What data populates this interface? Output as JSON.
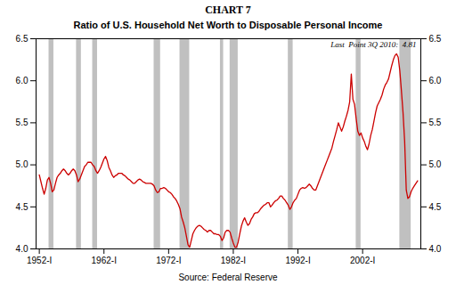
{
  "chart_data": {
    "type": "line",
    "title": "CHART 7",
    "subtitle": "Ratio of U.S. Household Net Worth to Disposable Personal Income",
    "annotation": "Last  Point 3Q 2010:  4.81",
    "source": "Source: Federal Reserve",
    "color": "#cc0000",
    "grid": false,
    "xlim": [
      1951.5,
      2011.0
    ],
    "xticks": [
      {
        "value": 1952,
        "label": "1952-I"
      },
      {
        "value": 1962,
        "label": "1962-I"
      },
      {
        "value": 1972,
        "label": "1972-I"
      },
      {
        "value": 1982,
        "label": "1982-I"
      },
      {
        "value": 1992,
        "label": "1992-I"
      },
      {
        "value": 2002,
        "label": "2002-I"
      }
    ],
    "ylim": [
      4.0,
      6.5
    ],
    "yticks": [
      {
        "value": 4.0,
        "label": "4.0"
      },
      4.5,
      {
        "value": 5.0,
        "label": "5.0"
      },
      5.5,
      {
        "value": 6.0,
        "label": "6.0"
      },
      6.5
    ],
    "y2lim": [
      4.0,
      6.5
    ],
    "y2ticks": [
      {
        "value": 4.0,
        "label": "4.0"
      },
      4.5,
      {
        "value": 5.0,
        "label": "5.0"
      },
      5.5,
      {
        "value": 6.0,
        "label": "6.0"
      },
      6.5
    ],
    "recessions": {
      "color": "#c0c0c0",
      "spans": [
        [
          1953.5,
          1954.25
        ],
        [
          1957.75,
          1958.5
        ],
        [
          1960.25,
          1961.0
        ],
        [
          1969.75,
          1970.75
        ],
        [
          1973.75,
          1975.25
        ],
        [
          1980.0,
          1980.5
        ],
        [
          1981.5,
          1982.75
        ],
        [
          1990.5,
          1991.25
        ],
        [
          2001.0,
          2001.75
        ],
        [
          2007.75,
          2009.5
        ]
      ]
    },
    "x": [
      1952.0,
      1952.25,
      1952.5,
      1952.75,
      1953.0,
      1953.25,
      1953.5,
      1953.75,
      1954.0,
      1954.25,
      1954.5,
      1954.75,
      1955.0,
      1955.25,
      1955.5,
      1955.75,
      1956.0,
      1956.25,
      1956.5,
      1956.75,
      1957.0,
      1957.25,
      1957.5,
      1957.75,
      1958.0,
      1958.25,
      1958.5,
      1958.75,
      1959.0,
      1959.25,
      1959.5,
      1959.75,
      1960.0,
      1960.25,
      1960.5,
      1960.75,
      1961.0,
      1961.25,
      1961.5,
      1961.75,
      1962.0,
      1962.25,
      1962.5,
      1962.75,
      1963.0,
      1963.25,
      1963.5,
      1963.75,
      1964.0,
      1964.25,
      1964.5,
      1964.75,
      1965.0,
      1965.25,
      1965.5,
      1965.75,
      1966.0,
      1966.25,
      1966.5,
      1966.75,
      1967.0,
      1967.25,
      1967.5,
      1967.75,
      1968.0,
      1968.25,
      1968.5,
      1968.75,
      1969.0,
      1969.25,
      1969.5,
      1969.75,
      1970.0,
      1970.25,
      1970.5,
      1970.75,
      1971.0,
      1971.25,
      1971.5,
      1971.75,
      1972.0,
      1972.25,
      1972.5,
      1972.75,
      1973.0,
      1973.25,
      1973.5,
      1973.75,
      1974.0,
      1974.25,
      1974.5,
      1974.75,
      1975.0,
      1975.25,
      1975.5,
      1975.75,
      1976.0,
      1976.25,
      1976.5,
      1976.75,
      1977.0,
      1977.25,
      1977.5,
      1977.75,
      1978.0,
      1978.25,
      1978.5,
      1978.75,
      1979.0,
      1979.25,
      1979.5,
      1979.75,
      1980.0,
      1980.25,
      1980.5,
      1980.75,
      1981.0,
      1981.25,
      1981.5,
      1981.75,
      1982.0,
      1982.25,
      1982.5,
      1982.75,
      1983.0,
      1983.25,
      1983.5,
      1983.75,
      1984.0,
      1984.25,
      1984.5,
      1984.75,
      1985.0,
      1985.25,
      1985.5,
      1985.75,
      1986.0,
      1986.25,
      1986.5,
      1986.75,
      1987.0,
      1987.25,
      1987.5,
      1987.75,
      1988.0,
      1988.25,
      1988.5,
      1988.75,
      1989.0,
      1989.25,
      1989.5,
      1989.75,
      1990.0,
      1990.25,
      1990.5,
      1990.75,
      1991.0,
      1991.25,
      1991.5,
      1991.75,
      1992.0,
      1992.25,
      1992.5,
      1992.75,
      1993.0,
      1993.25,
      1993.5,
      1993.75,
      1994.0,
      1994.25,
      1994.5,
      1994.75,
      1995.0,
      1995.25,
      1995.5,
      1995.75,
      1996.0,
      1996.25,
      1996.5,
      1996.75,
      1997.0,
      1997.25,
      1997.5,
      1997.75,
      1998.0,
      1998.25,
      1998.5,
      1998.75,
      1999.0,
      1999.25,
      1999.5,
      1999.75,
      2000.0,
      2000.25,
      2000.5,
      2000.75,
      2001.0,
      2001.25,
      2001.5,
      2001.75,
      2002.0,
      2002.25,
      2002.5,
      2002.75,
      2003.0,
      2003.25,
      2003.5,
      2003.75,
      2004.0,
      2004.25,
      2004.5,
      2004.75,
      2005.0,
      2005.25,
      2005.5,
      2005.75,
      2006.0,
      2006.25,
      2006.5,
      2006.75,
      2007.0,
      2007.25,
      2007.5,
      2007.75,
      2008.0,
      2008.25,
      2008.5,
      2008.75,
      2009.0,
      2009.25,
      2009.5,
      2009.75,
      2010.0,
      2010.25,
      2010.5
    ],
    "values": [
      4.88,
      4.8,
      4.72,
      4.65,
      4.72,
      4.82,
      4.85,
      4.78,
      4.68,
      4.7,
      4.78,
      4.85,
      4.88,
      4.9,
      4.93,
      4.95,
      4.93,
      4.9,
      4.88,
      4.9,
      4.93,
      4.95,
      4.93,
      4.88,
      4.8,
      4.83,
      4.88,
      4.93,
      4.98,
      5.0,
      5.03,
      5.03,
      5.03,
      5.0,
      4.98,
      4.93,
      4.9,
      4.93,
      4.97,
      5.02,
      5.07,
      5.1,
      5.05,
      4.97,
      4.93,
      4.88,
      4.85,
      4.87,
      4.88,
      4.9,
      4.9,
      4.9,
      4.88,
      4.87,
      4.85,
      4.83,
      4.82,
      4.8,
      4.78,
      4.78,
      4.8,
      4.82,
      4.83,
      4.82,
      4.8,
      4.79,
      4.78,
      4.78,
      4.78,
      4.78,
      4.77,
      4.75,
      4.7,
      4.67,
      4.68,
      4.72,
      4.72,
      4.73,
      4.72,
      4.7,
      4.68,
      4.67,
      4.65,
      4.62,
      4.6,
      4.57,
      4.53,
      4.48,
      4.38,
      4.32,
      4.25,
      4.15,
      4.05,
      4.02,
      4.1,
      4.18,
      4.22,
      4.25,
      4.27,
      4.28,
      4.27,
      4.25,
      4.23,
      4.22,
      4.2,
      4.22,
      4.22,
      4.2,
      4.18,
      4.18,
      4.17,
      4.17,
      4.15,
      4.1,
      4.13,
      4.2,
      4.22,
      4.22,
      4.2,
      4.13,
      4.07,
      4.02,
      4.02,
      4.08,
      4.18,
      4.27,
      4.33,
      4.37,
      4.32,
      4.28,
      4.3,
      4.35,
      4.38,
      4.42,
      4.43,
      4.43,
      4.45,
      4.48,
      4.5,
      4.52,
      4.53,
      4.55,
      4.55,
      4.5,
      4.52,
      4.55,
      4.57,
      4.58,
      4.6,
      4.63,
      4.63,
      4.6,
      4.58,
      4.55,
      4.52,
      4.47,
      4.5,
      4.55,
      4.58,
      4.6,
      4.65,
      4.7,
      4.72,
      4.73,
      4.72,
      4.73,
      4.75,
      4.77,
      4.75,
      4.72,
      4.7,
      4.7,
      4.75,
      4.8,
      4.85,
      4.9,
      4.95,
      5.0,
      5.05,
      5.1,
      5.15,
      5.2,
      5.28,
      5.35,
      5.42,
      5.5,
      5.45,
      5.4,
      5.45,
      5.52,
      5.58,
      5.65,
      5.75,
      6.08,
      5.78,
      5.72,
      5.55,
      5.4,
      5.35,
      5.38,
      5.32,
      5.28,
      5.22,
      5.18,
      5.25,
      5.35,
      5.42,
      5.52,
      5.62,
      5.7,
      5.74,
      5.78,
      5.83,
      5.9,
      5.95,
      5.98,
      6.02,
      6.1,
      6.18,
      6.25,
      6.3,
      6.32,
      6.28,
      6.12,
      5.88,
      5.62,
      5.28,
      4.7,
      4.6,
      4.62,
      4.68,
      4.72,
      4.75,
      4.78,
      4.81
    ]
  }
}
